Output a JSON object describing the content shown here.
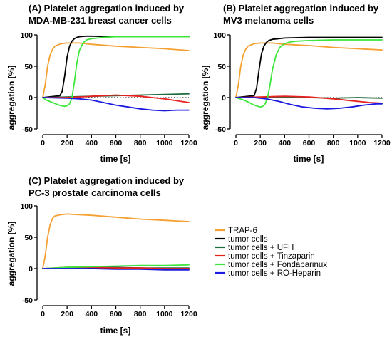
{
  "figure": {
    "legend": [
      {
        "label": "TRAP-6",
        "color": "#f5a030"
      },
      {
        "label": "tumor cells",
        "color": "#000000"
      },
      {
        "label": "tumor cells + UFH",
        "color": "#1e6b3e"
      },
      {
        "label": "tumor cells + Tinzaparin",
        "color": "#e82020"
      },
      {
        "label": "tumor cells + Fondaparinux",
        "color": "#3ce63c"
      },
      {
        "label": "tumor cells + RO-Heparin",
        "color": "#1a1ae0"
      }
    ]
  },
  "chart_data": [
    {
      "type": "line",
      "title_lines": [
        "(A) Platelet aggregation induced by",
        "MDA-MB-231 breast cancer cells"
      ],
      "xlabel": "time [s]",
      "ylabel": "aggregation [%]",
      "xlim": [
        0,
        1200
      ],
      "ylim": [
        -50,
        100
      ],
      "xticks": [
        0,
        200,
        400,
        600,
        800,
        1000,
        1200
      ],
      "yticks": [
        -50,
        0,
        50,
        100
      ],
      "zero_line": "dotted",
      "series": [
        {
          "name": "TRAP-6",
          "color": "#f5a030",
          "x": [
            0,
            20,
            40,
            60,
            80,
            100,
            150,
            200,
            300,
            400,
            600,
            800,
            1000,
            1200
          ],
          "y": [
            0,
            20,
            50,
            68,
            77,
            82,
            86,
            87,
            87,
            85,
            82,
            80,
            78,
            75
          ]
        },
        {
          "name": "tumor cells",
          "color": "#000000",
          "x": [
            0,
            100,
            140,
            160,
            180,
            200,
            220,
            240,
            260,
            280,
            300,
            350,
            400,
            600,
            800,
            1000,
            1200
          ],
          "y": [
            0,
            2,
            3,
            10,
            35,
            65,
            82,
            90,
            94,
            96,
            97,
            98,
            98,
            97,
            97,
            97,
            97
          ]
        },
        {
          "name": "tumor cells + UFH",
          "color": "#1e6b3e",
          "x": [
            0,
            200,
            400,
            600,
            800,
            1000,
            1200
          ],
          "y": [
            0,
            1,
            2,
            3,
            4,
            5,
            6
          ]
        },
        {
          "name": "tumor cells + Tinzaparin",
          "color": "#e82020",
          "x": [
            0,
            200,
            400,
            500,
            600,
            700,
            800,
            900,
            1000,
            1100,
            1200
          ],
          "y": [
            0,
            0,
            2,
            3,
            4,
            3,
            2,
            0,
            -2,
            -5,
            -8
          ]
        },
        {
          "name": "tumor cells + Fondaparinux",
          "color": "#3ce63c",
          "x": [
            0,
            30,
            80,
            120,
            150,
            180,
            200,
            220,
            240,
            260,
            280,
            300,
            330,
            360,
            400,
            500,
            600,
            800,
            1000,
            1200
          ],
          "y": [
            0,
            -4,
            -8,
            -11,
            -13,
            -14,
            -13,
            -10,
            0,
            25,
            55,
            75,
            87,
            92,
            94,
            96,
            97,
            97,
            97,
            97
          ]
        },
        {
          "name": "tumor cells + RO-Heparin",
          "color": "#1a1ae0",
          "x": [
            0,
            200,
            300,
            400,
            500,
            600,
            700,
            800,
            900,
            1000,
            1100,
            1200
          ],
          "y": [
            0,
            -1,
            -2,
            -4,
            -8,
            -12,
            -15,
            -18,
            -20,
            -21,
            -20,
            -20
          ]
        }
      ]
    },
    {
      "type": "line",
      "title_lines": [
        "(B) Platelet aggregation induced by",
        "MV3 melanoma cells"
      ],
      "xlabel": "time [s]",
      "ylabel": "aggregation [%]",
      "xlim": [
        0,
        1200
      ],
      "ylim": [
        -50,
        100
      ],
      "xticks": [
        0,
        200,
        400,
        600,
        800,
        1000,
        1200
      ],
      "yticks": [
        -50,
        0,
        50,
        100
      ],
      "zero_line": "dotted",
      "series": [
        {
          "name": "TRAP-6",
          "color": "#f5a030",
          "x": [
            0,
            20,
            40,
            60,
            80,
            100,
            150,
            200,
            300,
            400,
            600,
            800,
            1000,
            1200
          ],
          "y": [
            0,
            20,
            50,
            68,
            77,
            82,
            86,
            87,
            87,
            85,
            83,
            80,
            78,
            76
          ]
        },
        {
          "name": "tumor cells",
          "color": "#000000",
          "x": [
            0,
            100,
            150,
            170,
            190,
            210,
            230,
            250,
            270,
            300,
            350,
            400,
            600,
            800,
            1000,
            1200
          ],
          "y": [
            0,
            2,
            3,
            15,
            45,
            70,
            82,
            88,
            91,
            93,
            94,
            95,
            96,
            96,
            96,
            96
          ]
        },
        {
          "name": "tumor cells + UFH",
          "color": "#1e6b3e",
          "x": [
            0,
            200,
            400,
            600,
            800,
            1000,
            1200
          ],
          "y": [
            0,
            0,
            1,
            0,
            -1,
            0,
            -1
          ]
        },
        {
          "name": "tumor cells + Tinzaparin",
          "color": "#e82020",
          "x": [
            0,
            200,
            400,
            600,
            800,
            1000,
            1100,
            1200
          ],
          "y": [
            0,
            1,
            2,
            1,
            -2,
            -6,
            -8,
            -9
          ]
        },
        {
          "name": "tumor cells + Fondaparinux",
          "color": "#3ce63c",
          "x": [
            0,
            50,
            100,
            150,
            200,
            220,
            240,
            260,
            280,
            300,
            330,
            360,
            400,
            450,
            500,
            600,
            800,
            1000,
            1200
          ],
          "y": [
            0,
            -3,
            -7,
            -12,
            -15,
            -14,
            -10,
            0,
            20,
            45,
            68,
            80,
            86,
            89,
            90,
            91,
            92,
            92,
            92
          ]
        },
        {
          "name": "tumor cells + RO-Heparin",
          "color": "#1a1ae0",
          "x": [
            0,
            150,
            250,
            350,
            450,
            550,
            650,
            750,
            850,
            950,
            1050,
            1150,
            1200
          ],
          "y": [
            0,
            0,
            -2,
            -6,
            -11,
            -15,
            -17,
            -18,
            -17,
            -15,
            -12,
            -10,
            -10
          ]
        }
      ]
    },
    {
      "type": "line",
      "title_lines": [
        "(C) Platelet aggregation induced by",
        "PC-3 prostate carcinoma cells"
      ],
      "xlabel": "time [s]",
      "ylabel": "aggregation [%]",
      "xlim": [
        0,
        1200
      ],
      "ylim": [
        -50,
        100
      ],
      "xticks": [
        0,
        200,
        400,
        600,
        800,
        1000,
        1200
      ],
      "yticks": [
        -50,
        0,
        50,
        100
      ],
      "zero_line": "none",
      "series": [
        {
          "name": "TRAP-6",
          "color": "#f5a030",
          "x": [
            0,
            20,
            40,
            60,
            80,
            100,
            150,
            200,
            300,
            400,
            600,
            800,
            1000,
            1200
          ],
          "y": [
            0,
            20,
            50,
            70,
            80,
            84,
            86,
            87,
            86,
            85,
            82,
            79,
            77,
            75
          ]
        },
        {
          "name": "tumor cells",
          "color": "#000000",
          "x": [
            0,
            200,
            400,
            600,
            800,
            1000,
            1200
          ],
          "y": [
            0,
            1,
            1,
            0,
            1,
            0,
            0
          ]
        },
        {
          "name": "tumor cells + UFH",
          "color": "#1e6b3e",
          "x": [
            0,
            200,
            400,
            600,
            800,
            1000,
            1200
          ],
          "y": [
            0,
            1,
            2,
            2,
            1,
            1,
            1
          ]
        },
        {
          "name": "tumor cells + Tinzaparin",
          "color": "#e82020",
          "x": [
            0,
            200,
            400,
            600,
            800,
            1000,
            1200
          ],
          "y": [
            0,
            2,
            2,
            1,
            1,
            0,
            0
          ]
        },
        {
          "name": "tumor cells + Fondaparinux",
          "color": "#3ce63c",
          "x": [
            0,
            200,
            400,
            600,
            800,
            1000,
            1200
          ],
          "y": [
            0,
            2,
            3,
            4,
            5,
            5,
            6
          ]
        },
        {
          "name": "tumor cells + RO-Heparin",
          "color": "#1a1ae0",
          "x": [
            0,
            200,
            400,
            600,
            800,
            1000,
            1200
          ],
          "y": [
            0,
            0,
            0,
            -1,
            -1,
            -2,
            -2
          ]
        }
      ]
    }
  ]
}
